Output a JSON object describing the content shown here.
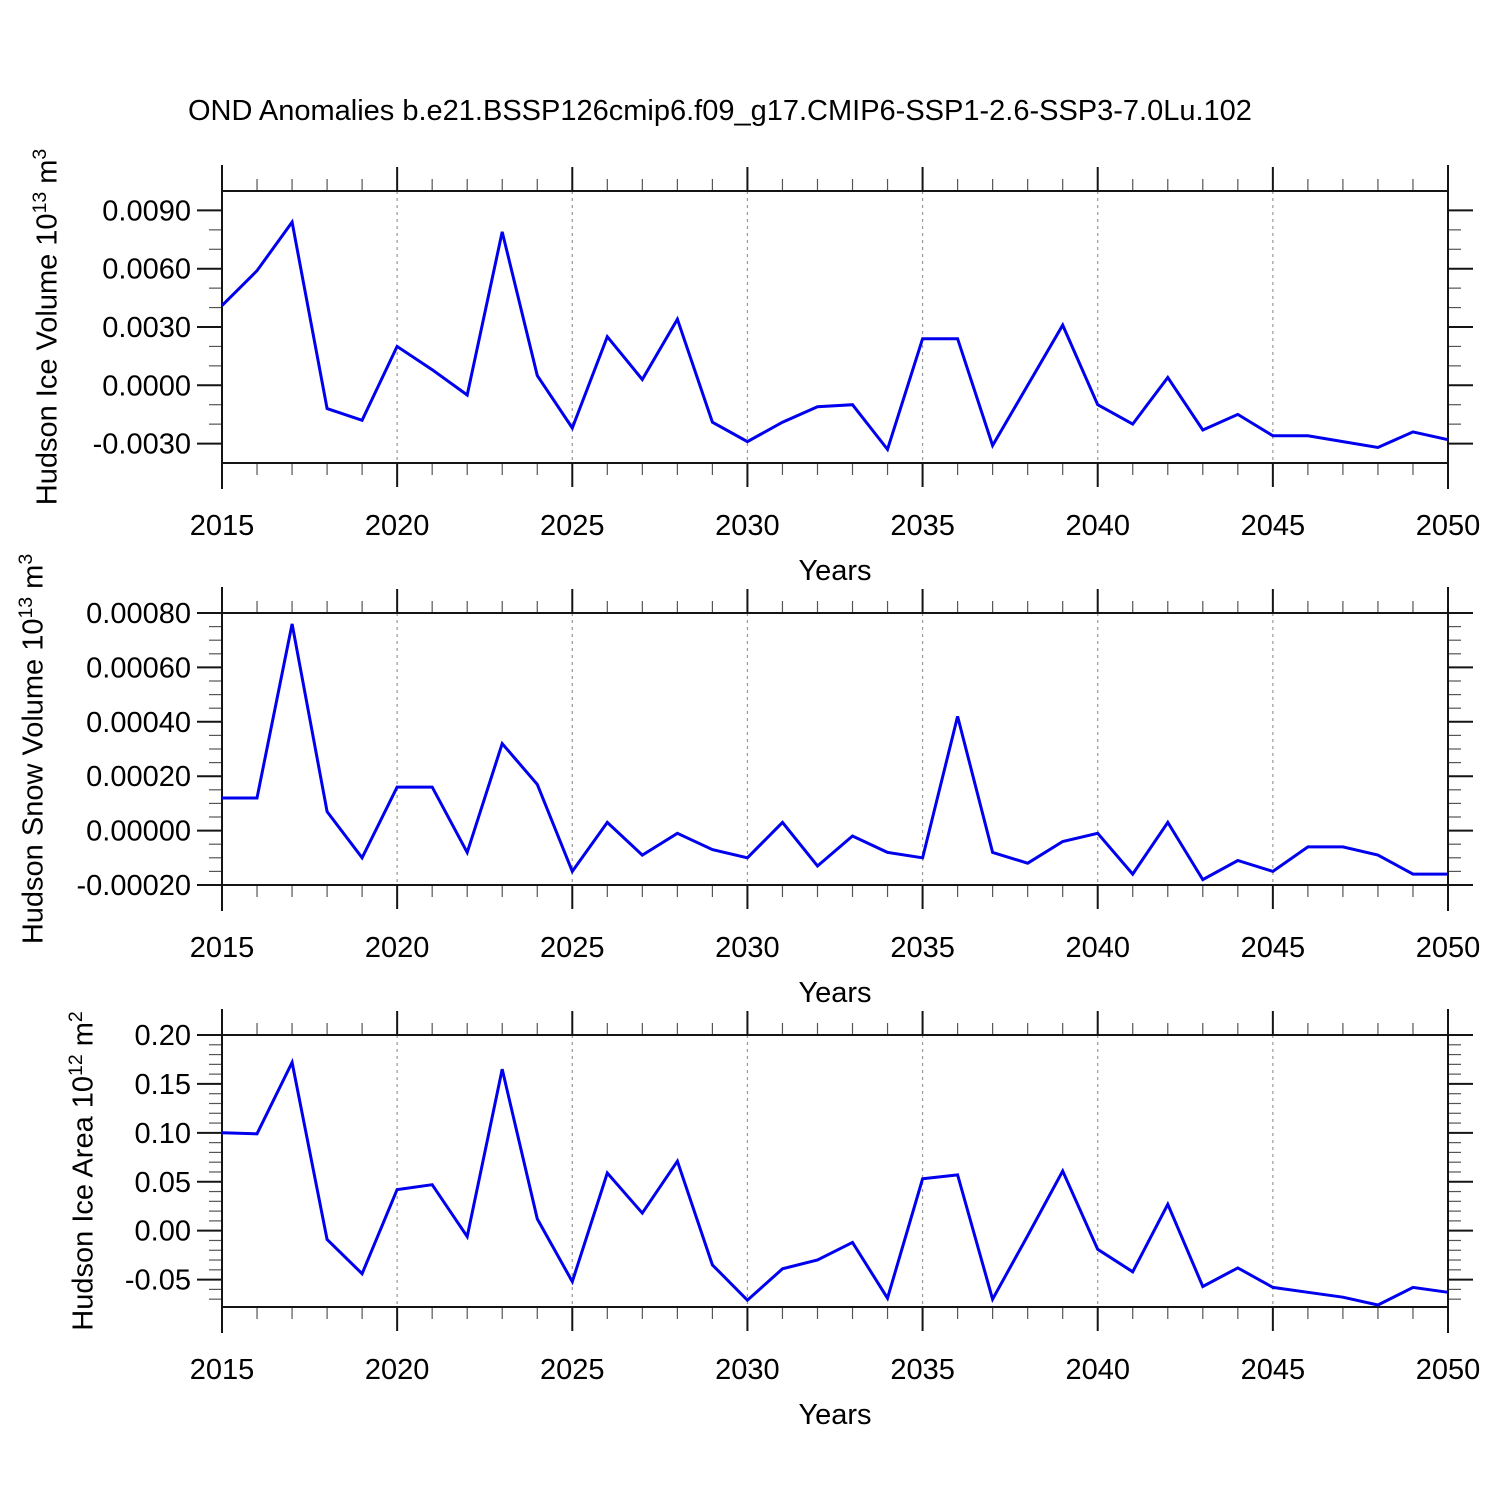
{
  "title": "OND Anomalies b.e21.BSSP126cmip6.f09_g17.CMIP6-SSP1-2.6-SSP3-7.0Lu.102",
  "colors": {
    "line": "#0000EE",
    "frame": "#141414",
    "major_tick": "#141414",
    "minor_tick": "#555555",
    "gridline": "#999999",
    "text": "#000000"
  },
  "chart_data": {
    "type": "line",
    "title": "OND Anomalies b.e21.BSSP126cmip6.f09_g17.CMIP6-SSP1-2.6-SSP3-7.0Lu.102",
    "xlabel": "Years",
    "xlim": [
      2015,
      2050
    ],
    "x_major_ticks": [
      2015,
      2020,
      2025,
      2030,
      2035,
      2040,
      2045,
      2050
    ],
    "x_tick_labels": [
      "2015",
      "2020",
      "2025",
      "2030",
      "2035",
      "2040",
      "2045",
      "2050"
    ],
    "x_minor_step": 1,
    "gridline_years": [
      2020,
      2025,
      2030,
      2035,
      2040,
      2045
    ],
    "grid": "vertical-dashed",
    "legend": "none",
    "x": [
      2015,
      2016,
      2017,
      2018,
      2019,
      2020,
      2021,
      2022,
      2023,
      2024,
      2025,
      2026,
      2027,
      2028,
      2029,
      2030,
      2031,
      2032,
      2033,
      2034,
      2035,
      2036,
      2037,
      2038,
      2039,
      2040,
      2041,
      2042,
      2043,
      2044,
      2045,
      2046,
      2047,
      2048,
      2049,
      2050
    ],
    "series": [
      {
        "name": "Hudson Ice Volume (10^13 m^3)",
        "ylabel_parts": [
          {
            "text": "Hudson Ice Volume 10",
            "sup": false
          },
          {
            "text": "13",
            "sup": true
          },
          {
            "text": " m",
            "sup": false
          },
          {
            "text": "3",
            "sup": true
          }
        ],
        "ylim": [
          -0.004,
          0.01
        ],
        "y_major_ticks": [
          0.009,
          0.006,
          0.003,
          0.0,
          -0.003
        ],
        "y_tick_labels": [
          "0.0090",
          "0.0060",
          "0.0030",
          "0.0000",
          "-0.0030"
        ],
        "y_minor_step": 0.001,
        "values": [
          0.0041,
          0.0059,
          0.0084,
          -0.0012,
          -0.0018,
          0.002,
          0.0008,
          -0.0005,
          0.0079,
          0.0005,
          -0.0022,
          0.0025,
          0.0003,
          0.0034,
          -0.0019,
          -0.0029,
          -0.0019,
          -0.0011,
          -0.001,
          -0.0033,
          0.0024,
          0.0024,
          -0.0031,
          0.0,
          0.0031,
          -0.001,
          -0.002,
          0.0004,
          -0.0023,
          -0.0015,
          -0.0026,
          -0.0026,
          -0.0029,
          -0.0032,
          -0.0024,
          -0.0028
        ]
      },
      {
        "name": "Hudson Snow Volume (10^13 m^3)",
        "ylabel_parts": [
          {
            "text": "Hudson Snow Volume 10",
            "sup": false
          },
          {
            "text": "13",
            "sup": true
          },
          {
            "text": " m",
            "sup": false
          },
          {
            "text": "3",
            "sup": true
          }
        ],
        "ylim": [
          -0.0002,
          0.0008
        ],
        "y_major_ticks": [
          0.0008,
          0.0006,
          0.0004,
          0.0002,
          0.0,
          -0.0002
        ],
        "y_tick_labels": [
          "0.00080",
          "0.00060",
          "0.00040",
          "0.00020",
          "0.00000",
          "-0.00020"
        ],
        "y_minor_step": 5e-05,
        "values": [
          0.00012,
          0.00012,
          0.00076,
          7e-05,
          -0.0001,
          0.00016,
          0.00016,
          -8e-05,
          0.00032,
          0.00017,
          -0.00015,
          3e-05,
          -9e-05,
          -1e-05,
          -7e-05,
          -0.0001,
          3e-05,
          -0.00013,
          -2e-05,
          -8e-05,
          -0.0001,
          0.00042,
          -8e-05,
          -0.00012,
          -4e-05,
          -1e-05,
          -0.00016,
          3e-05,
          -0.00018,
          -0.00011,
          -0.00015,
          -6e-05,
          -6e-05,
          -9e-05,
          -0.00016,
          -0.00016
        ]
      },
      {
        "name": "Hudson Ice Area (10^12 m^2)",
        "ylabel_parts": [
          {
            "text": "Hudson Ice Area 10",
            "sup": false
          },
          {
            "text": "12",
            "sup": true
          },
          {
            "text": " m",
            "sup": false
          },
          {
            "text": "2",
            "sup": true
          }
        ],
        "ylim": [
          -0.078,
          0.2
        ],
        "y_major_ticks": [
          0.2,
          0.15,
          0.1,
          0.05,
          0.0,
          -0.05
        ],
        "y_tick_labels": [
          "0.20",
          "0.15",
          "0.10",
          "0.05",
          "0.00",
          "-0.05"
        ],
        "y_minor_step": 0.01,
        "values": [
          0.1,
          0.099,
          0.172,
          -0.009,
          -0.044,
          0.042,
          0.047,
          -0.006,
          0.165,
          0.012,
          -0.052,
          0.059,
          0.018,
          0.071,
          -0.035,
          -0.071,
          -0.039,
          -0.03,
          -0.012,
          -0.069,
          0.053,
          0.057,
          -0.07,
          -0.005,
          0.061,
          -0.019,
          -0.042,
          0.027,
          -0.057,
          -0.038,
          -0.058,
          -0.063,
          -0.068,
          -0.076,
          -0.058,
          -0.063
        ]
      }
    ]
  }
}
